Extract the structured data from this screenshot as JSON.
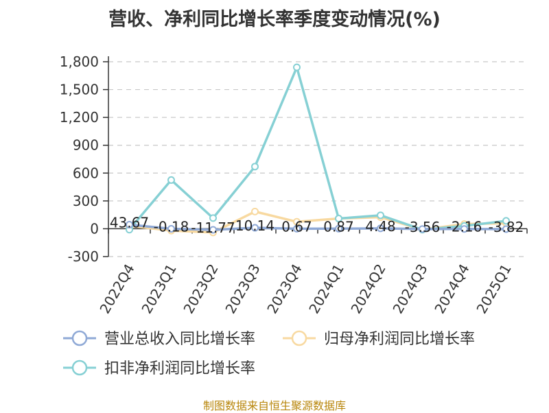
{
  "title": "营收、净利同比增长率季度变动情况(%)",
  "source": "制图数据来自恒生聚源数据库",
  "chart_data": {
    "type": "line",
    "title": "营收、净利同比增长率季度变动情况(%)",
    "x": [
      "2022Q4",
      "2023Q1",
      "2023Q2",
      "2023Q3",
      "2023Q4",
      "2024Q1",
      "2024Q2",
      "2024Q3",
      "2024Q4",
      "2025Q1"
    ],
    "ylim": [
      -300,
      1800
    ],
    "yticks": [
      -300,
      0,
      300,
      600,
      900,
      1200,
      1500,
      1800
    ],
    "ytick_labels": [
      "-300",
      "0",
      "300",
      "600",
      "900",
      "1,200",
      "1,500",
      "1,800"
    ],
    "grid": true,
    "legend_position": "bottom",
    "series": [
      {
        "name": "营业总收入同比增长率",
        "color": "#8fa9d6",
        "values": [
          43.67,
          -0.18,
          -11.77,
          10.14,
          0.67,
          0.87,
          4.48,
          -3.56,
          -2.16,
          -3.82
        ],
        "labels": [
          "43.67",
          "-0.18",
          "-11.77",
          "10.14",
          "0.67",
          "0.87",
          "4.48",
          "-3.56",
          "-2.16",
          "-3.82"
        ]
      },
      {
        "name": "归母净利润同比增长率",
        "color": "#f8d9a0",
        "values": [
          30,
          -20,
          -40,
          185,
          75,
          110,
          125,
          -10,
          50,
          60
        ]
      },
      {
        "name": "扣非净利润同比增长率",
        "color": "#86d0d4",
        "values": [
          -10,
          525,
          115,
          670,
          1740,
          110,
          145,
          -10,
          30,
          85
        ]
      }
    ]
  }
}
